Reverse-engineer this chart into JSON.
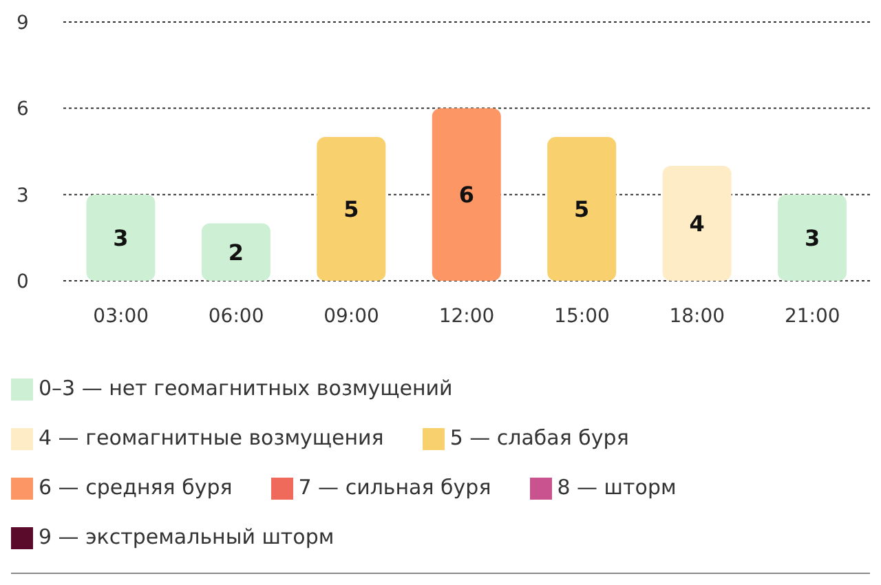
{
  "chart_data": {
    "type": "bar",
    "stacked": true,
    "categories": [
      "03:00",
      "06:00",
      "09:00",
      "12:00",
      "15:00",
      "18:00",
      "21:00"
    ],
    "series": [
      {
        "name": "0–3 — нет геомагнитных возмущений",
        "color": "#cdefd3",
        "values": [
          3,
          2,
          null,
          null,
          null,
          null,
          3
        ]
      },
      {
        "name": "4 — геомагнитные возмущения",
        "color": "#fdecc6",
        "values": [
          null,
          null,
          null,
          null,
          null,
          4,
          null
        ]
      },
      {
        "name": "5 — слабая буря",
        "color": "#f8d06e",
        "values": [
          null,
          null,
          5,
          null,
          5,
          null,
          null
        ]
      },
      {
        "name": "6 — средняя буря",
        "color": "#fc9665",
        "values": [
          null,
          null,
          null,
          6,
          null,
          null,
          null
        ]
      },
      {
        "name": "7 — сильная буря",
        "color": "#ef6a5a",
        "values": [
          null,
          null,
          null,
          null,
          null,
          null,
          null
        ]
      },
      {
        "name": "8 — шторм",
        "color": "#c9538e",
        "values": [
          null,
          null,
          null,
          null,
          null,
          null,
          null
        ]
      },
      {
        "name": "9 — экстремальный шторм",
        "color": "#5a0a2a",
        "values": [
          null,
          null,
          null,
          null,
          null,
          null,
          null
        ]
      }
    ],
    "ylim": [
      0,
      9
    ],
    "yticks": [
      0,
      3,
      6,
      9
    ],
    "grid": "y",
    "data_labels": true,
    "legend": "bottom"
  }
}
